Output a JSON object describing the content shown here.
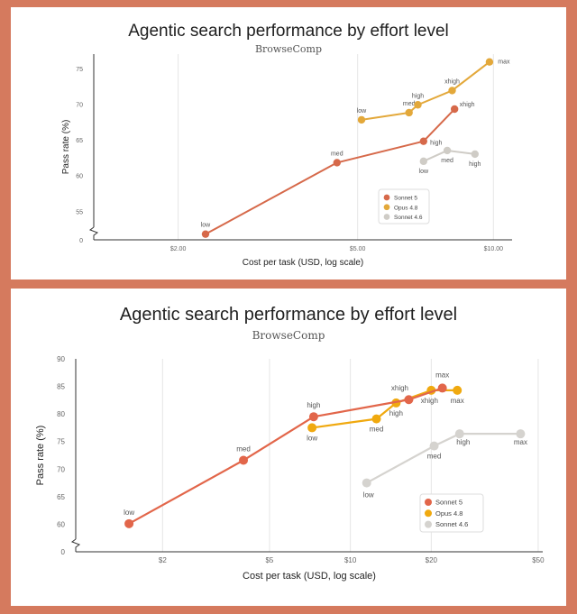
{
  "chart_data": [
    {
      "type": "line",
      "title": "Agentic search performance by effort level",
      "subtitle": "BrowseComp",
      "xlabel": "Cost per task (USD, log scale)",
      "ylabel": "Pass rate (%)",
      "x_scale": "log",
      "xlim": [
        1.3,
        11.0
      ],
      "x_ticks": [
        {
          "v": 2,
          "label": "$2.00"
        },
        {
          "v": 5,
          "label": "$5.00"
        },
        {
          "v": 10,
          "label": "$10.00"
        }
      ],
      "ylim": [
        51,
        77
      ],
      "y_ticks": [
        {
          "v": 55,
          "label": "55"
        },
        {
          "v": 60,
          "label": "60"
        },
        {
          "v": 65,
          "label": "65"
        },
        {
          "v": 70,
          "label": "70"
        },
        {
          "v": 75,
          "label": "75"
        }
      ],
      "y_zero_label": "0",
      "y_axis_break": true,
      "grid": "vertical",
      "legend_position": "bottom-right",
      "series": [
        {
          "name": "Sonnet 5",
          "color": "#d6694a",
          "points": [
            {
              "x": 2.3,
              "y": 51.8,
              "label": "low"
            },
            {
              "x": 4.5,
              "y": 61.8,
              "label": "med"
            },
            {
              "x": 7.0,
              "y": 64.8,
              "label": "high"
            },
            {
              "x": 8.2,
              "y": 69.3,
              "label": "xhigh"
            }
          ]
        },
        {
          "name": "Opus 4.8",
          "color": "#e3a83a",
          "points": [
            {
              "x": 5.1,
              "y": 67.8,
              "label": "low"
            },
            {
              "x": 6.5,
              "y": 68.8,
              "label": "med"
            },
            {
              "x": 6.8,
              "y": 69.9,
              "label": "high"
            },
            {
              "x": 8.1,
              "y": 71.9,
              "label": "xhigh"
            },
            {
              "x": 9.8,
              "y": 75.9,
              "label": "max"
            }
          ]
        },
        {
          "name": "Sonnet 4.6",
          "color": "#cfccc6",
          "points": [
            {
              "x": 7.0,
              "y": 62.0,
              "label": "low"
            },
            {
              "x": 7.9,
              "y": 63.5,
              "label": "med"
            },
            {
              "x": 9.1,
              "y": 63.0,
              "label": "high"
            }
          ]
        }
      ]
    },
    {
      "type": "line",
      "title": "Agentic search performance by effort level",
      "subtitle": "BrowseComp",
      "xlabel": "Cost per task (USD, log scale)",
      "ylabel": "Pass rate (%)",
      "x_scale": "log",
      "xlim": [
        0.95,
        52
      ],
      "x_ticks": [
        {
          "v": 2,
          "label": "$2"
        },
        {
          "v": 5,
          "label": "$5"
        },
        {
          "v": 10,
          "label": "$10"
        },
        {
          "v": 20,
          "label": "$20"
        },
        {
          "v": 50,
          "label": "$50"
        }
      ],
      "ylim": [
        55,
        90
      ],
      "y_ticks": [
        {
          "v": 60,
          "label": "60"
        },
        {
          "v": 65,
          "label": "65"
        },
        {
          "v": 70,
          "label": "70"
        },
        {
          "v": 75,
          "label": "75"
        },
        {
          "v": 80,
          "label": "80"
        },
        {
          "v": 85,
          "label": "85"
        },
        {
          "v": 90,
          "label": "90"
        }
      ],
      "y_zero_label": "0",
      "y_axis_break": true,
      "grid": "vertical",
      "legend_position": "bottom-right",
      "series": [
        {
          "name": "Sonnet 5",
          "color": "#e2664a",
          "points": [
            {
              "x": 1.5,
              "y": 60.1,
              "label": "low"
            },
            {
              "x": 4.0,
              "y": 71.6,
              "label": "med"
            },
            {
              "x": 7.3,
              "y": 79.5,
              "label": "high"
            },
            {
              "x": 16.5,
              "y": 82.6,
              "label": "xhigh"
            },
            {
              "x": 22.0,
              "y": 84.7,
              "label": "max"
            }
          ]
        },
        {
          "name": "Opus 4.8",
          "color": "#f0a90f",
          "points": [
            {
              "x": 7.2,
              "y": 77.5,
              "label": "low"
            },
            {
              "x": 12.5,
              "y": 79.1,
              "label": "med"
            },
            {
              "x": 14.8,
              "y": 82.0,
              "label": "high"
            },
            {
              "x": 20.0,
              "y": 84.3,
              "label": "xhigh"
            },
            {
              "x": 25.0,
              "y": 84.3,
              "label": "max"
            }
          ]
        },
        {
          "name": "Sonnet 4.6",
          "color": "#d5d3cf",
          "points": [
            {
              "x": 11.5,
              "y": 67.5,
              "label": "low"
            },
            {
              "x": 20.5,
              "y": 74.2,
              "label": "med"
            },
            {
              "x": 25.5,
              "y": 76.4,
              "label": "high"
            },
            {
              "x": 43.0,
              "y": 76.4,
              "label": "max"
            }
          ]
        }
      ]
    }
  ]
}
